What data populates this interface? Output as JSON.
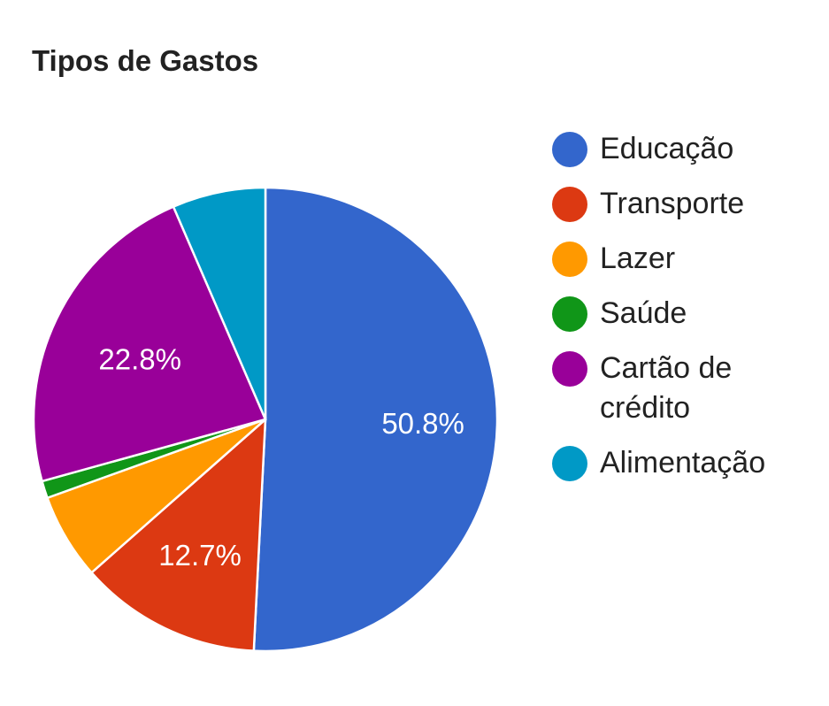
{
  "chart_data": {
    "type": "pie",
    "title": "Tipos de Gastos",
    "slices": [
      {
        "label": "Educação",
        "value": 50.8,
        "color": "#3366cc",
        "display_label": "50.8%"
      },
      {
        "label": "Transporte",
        "value": 12.7,
        "color": "#dc3912",
        "display_label": "12.7%"
      },
      {
        "label": "Lazer",
        "value": 6.0,
        "color": "#ff9900",
        "display_label": ""
      },
      {
        "label": "Saúde",
        "value": 1.2,
        "color": "#109618",
        "display_label": ""
      },
      {
        "label": "Cartão de crédito",
        "value": 22.8,
        "color": "#990099",
        "display_label": "22.8%"
      },
      {
        "label": "Alimentação",
        "value": 6.5,
        "color": "#0099c6",
        "display_label": ""
      }
    ],
    "legend_position": "right"
  }
}
